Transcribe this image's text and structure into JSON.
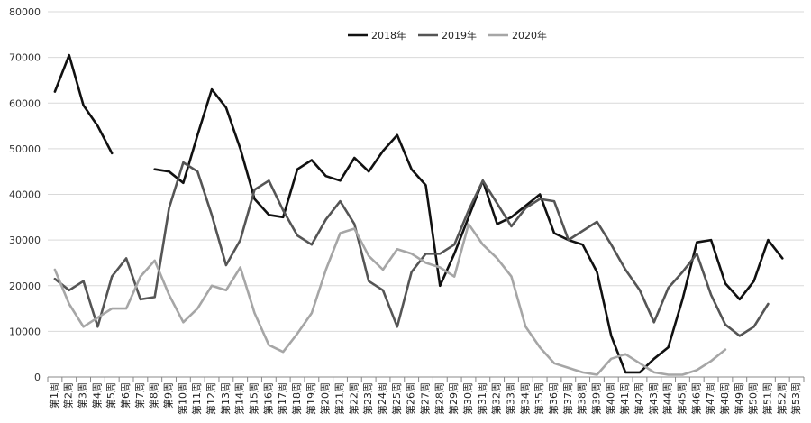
{
  "chart_data": {
    "type": "line",
    "title": "",
    "xlabel": "",
    "ylabel": "",
    "ylim": [
      0,
      80000
    ],
    "yticks": [
      0,
      10000,
      20000,
      30000,
      40000,
      50000,
      60000,
      70000,
      80000
    ],
    "grid": true,
    "legend_position": "top-center",
    "categories": [
      "第1周",
      "第2周",
      "第3周",
      "第4周",
      "第5周",
      "第6周",
      "第7周",
      "第8周",
      "第9周",
      "第10周",
      "第11周",
      "第12周",
      "第13周",
      "第14周",
      "第15周",
      "第16周",
      "第17周",
      "第18周",
      "第19周",
      "第20周",
      "第21周",
      "第22周",
      "第23周",
      "第24周",
      "第25周",
      "第26周",
      "第27周",
      "第28周",
      "第29周",
      "第30周",
      "第31周",
      "第32周",
      "第33周",
      "第34周",
      "第35周",
      "第36周",
      "第37周",
      "第38周",
      "第39周",
      "第40周",
      "第41周",
      "第42周",
      "第43周",
      "第44周",
      "第45周",
      "第46周",
      "第47周",
      "第48周",
      "第49周",
      "第50周",
      "第51周",
      "第52周",
      "第53周"
    ],
    "series": [
      {
        "name": "2018年",
        "color": "#111111",
        "values": [
          62500,
          70500,
          59500,
          55000,
          49000,
          null,
          null,
          45500,
          45000,
          42500,
          53000,
          63000,
          59000,
          50000,
          39000,
          35500,
          35000,
          45500,
          47500,
          44000,
          43000,
          48000,
          45000,
          49500,
          53000,
          45500,
          42000,
          20000,
          27000,
          35000,
          43000,
          33500,
          35000,
          37500,
          40000,
          31500,
          30000,
          29000,
          23000,
          9000,
          1000,
          1000,
          4000,
          6500,
          17000,
          29500,
          30000,
          20500,
          17000,
          21000,
          30000,
          26000,
          null
        ]
      },
      {
        "name": "2019年",
        "color": "#555555",
        "values": [
          21500,
          19000,
          21000,
          11000,
          22000,
          26000,
          17000,
          17500,
          37000,
          47000,
          45000,
          35500,
          24500,
          30000,
          41000,
          43000,
          36500,
          31000,
          29000,
          34500,
          38500,
          33500,
          21000,
          19000,
          11000,
          23000,
          27000,
          27000,
          29000,
          36500,
          43000,
          38000,
          33000,
          37000,
          39000,
          38500,
          30000,
          32000,
          34000,
          29000,
          23500,
          19000,
          12000,
          19500,
          23000,
          27000,
          18000,
          11500,
          9000,
          11000,
          16000,
          null,
          null
        ]
      },
      {
        "name": "2020年",
        "color": "#a6a6a6",
        "values": [
          23500,
          16000,
          11000,
          13000,
          15000,
          15000,
          22000,
          25500,
          18000,
          12000,
          15000,
          20000,
          19000,
          24000,
          14000,
          7000,
          5500,
          9500,
          14000,
          23500,
          31500,
          32500,
          26500,
          23500,
          28000,
          27000,
          25000,
          24000,
          22000,
          33500,
          29000,
          26000,
          22000,
          11000,
          6500,
          3000,
          2000,
          1000,
          500,
          4000,
          5000,
          3000,
          1000,
          500,
          500,
          1500,
          3500,
          6000,
          null,
          null,
          null,
          null,
          null
        ]
      }
    ]
  }
}
